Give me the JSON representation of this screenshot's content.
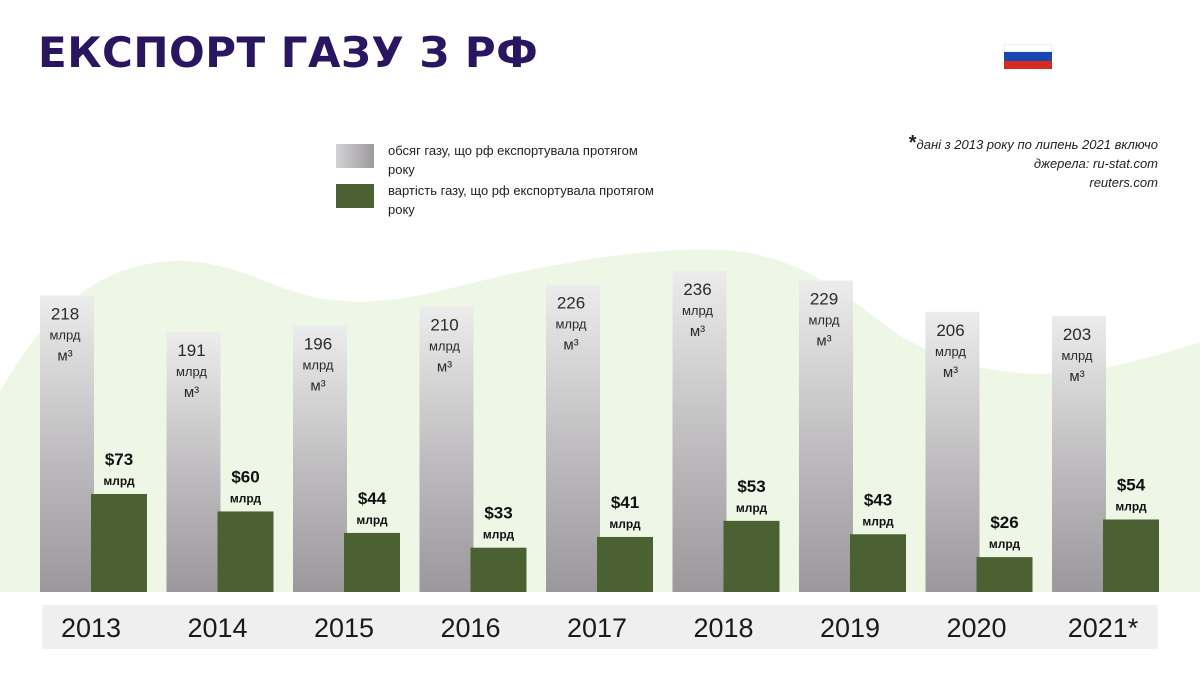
{
  "title": "ЕКСПОРТ ГАЗУ З РФ",
  "flag": {
    "icon": "russia-flag-icon",
    "colors": [
      "#ffffff",
      "#1a45b4",
      "#d52b1e"
    ]
  },
  "legend": [
    {
      "text": "обсяг газу, що рф експортувала протягом року",
      "color": "#b8b6b8"
    },
    {
      "text": "вартість газу, що рф експортувала протягом року",
      "color": "#4c6132"
    }
  ],
  "note": {
    "star": "*",
    "line1": "дані з 2013 року по липень 2021 включо",
    "line2": "джерела: ru-stat.com",
    "line3": "reuters.com"
  },
  "chart_data": {
    "type": "bar",
    "categories": [
      "2013",
      "2014",
      "2015",
      "2016",
      "2017",
      "2018",
      "2019",
      "2020",
      "2021*"
    ],
    "series": [
      {
        "name": "обсяг газу, що рф експортувала протягом року",
        "color": "#b8b6b8",
        "values": [
          218,
          191,
          196,
          210,
          226,
          236,
          229,
          206,
          203
        ],
        "unit_line1": "млрд",
        "unit_line2": "м³"
      },
      {
        "name": "вартість газу, що рф експортувала протягом року",
        "color": "#4c6132",
        "values": [
          73,
          60,
          44,
          33,
          41,
          53,
          43,
          26,
          54
        ],
        "prefix": "$",
        "unit": "млрд"
      }
    ],
    "colors": {
      "axis_band": "#efefef",
      "background_wave": "#eef7e6"
    }
  }
}
